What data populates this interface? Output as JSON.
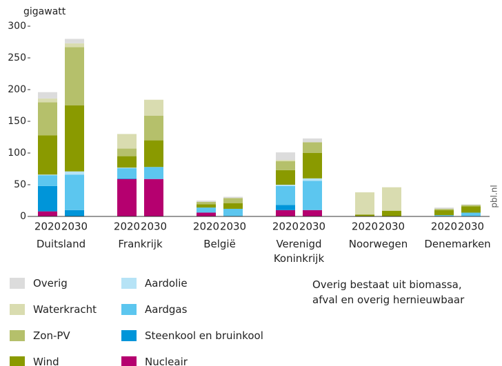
{
  "chart_data": {
    "type": "bar",
    "stacked": true,
    "y_label": "gigawatt",
    "source": "pbl.nl",
    "note": "Overig bestaat uit biomassa, afval en overig hernieuwbaar",
    "groups": [
      "Duitsland",
      "Frankrijk",
      "België",
      "Verenigd Koninkrijk",
      "Noorwegen",
      "Denemarken"
    ],
    "categories": [
      "2020",
      "2030",
      "2020",
      "2030",
      "2020",
      "2030",
      "2020",
      "2030",
      "2020",
      "2030",
      "2020",
      "2030"
    ],
    "ylim": [
      0,
      300
    ],
    "yticks": [
      0,
      50,
      100,
      150,
      200,
      250,
      300
    ],
    "series": [
      {
        "name": "Nucleair",
        "color": "#b5006f",
        "values": [
          8,
          0,
          59,
          59,
          6,
          0,
          10,
          10,
          0,
          0,
          0,
          0
        ]
      },
      {
        "name": "Steenkool en bruinkool",
        "color": "#0095d9",
        "values": [
          40,
          10,
          1,
          0,
          0,
          0,
          8,
          0,
          0,
          0,
          0,
          0
        ]
      },
      {
        "name": "Aardgas",
        "color": "#5cc6ef",
        "values": [
          17,
          56,
          16,
          19,
          8,
          12,
          30,
          46,
          0,
          0,
          2,
          6
        ]
      },
      {
        "name": "Aardolie",
        "color": "#b6e3f6",
        "values": [
          1,
          5,
          1,
          0,
          0,
          0,
          2,
          4,
          0,
          0,
          0,
          0
        ]
      },
      {
        "name": "Wind",
        "color": "#8a9a00",
        "values": [
          62,
          104,
          18,
          42,
          5,
          9,
          23,
          40,
          3,
          9,
          8,
          10
        ]
      },
      {
        "name": "Zon-PV",
        "color": "#b5c06b",
        "values": [
          52,
          92,
          12,
          39,
          4,
          8,
          14,
          17,
          0,
          0,
          2,
          2
        ]
      },
      {
        "name": "Waterkracht",
        "color": "#d9dcb0",
        "values": [
          6,
          6,
          23,
          25,
          0,
          0,
          2,
          0,
          35,
          37,
          0,
          0
        ]
      },
      {
        "name": "Overig",
        "color": "#dcdcdc",
        "values": [
          10,
          7,
          0,
          0,
          2,
          2,
          12,
          6,
          0,
          0,
          2,
          1
        ]
      }
    ]
  }
}
